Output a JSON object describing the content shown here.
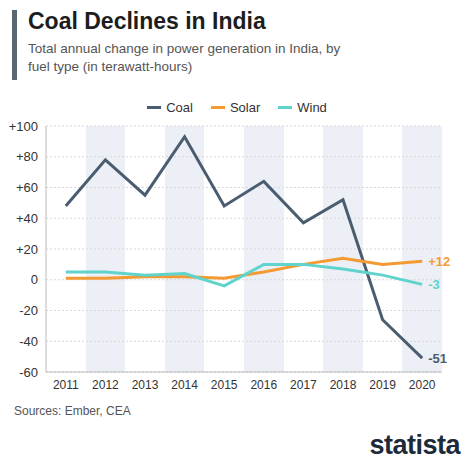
{
  "chart_data": {
    "type": "line",
    "title": "Coal Declines in India",
    "subtitle": "Total annual change in power generation in India, by fuel type (in terawatt-hours)",
    "categories": [
      "2011",
      "2012",
      "2013",
      "2014",
      "2015",
      "2016",
      "2017",
      "2018",
      "2019",
      "2020"
    ],
    "series": [
      {
        "name": "Coal",
        "color": "#4a5d70",
        "values": [
          48,
          78,
          55,
          93,
          48,
          64,
          37,
          52,
          -26,
          -51
        ],
        "value_labels": [
          null,
          null,
          null,
          null,
          null,
          null,
          null,
          null,
          null,
          "-51"
        ]
      },
      {
        "name": "Solar",
        "color": "#f39a32",
        "values": [
          1,
          1,
          2,
          2,
          1,
          5,
          10,
          14,
          10,
          12
        ],
        "value_labels": [
          null,
          null,
          null,
          null,
          null,
          null,
          null,
          null,
          null,
          "+12"
        ]
      },
      {
        "name": "Wind",
        "color": "#5fd3cc",
        "values": [
          5,
          5,
          3,
          4,
          -4,
          10,
          10,
          7,
          3,
          -3
        ],
        "value_labels": [
          null,
          null,
          null,
          null,
          null,
          null,
          null,
          null,
          null,
          "-3"
        ]
      }
    ],
    "ylim": [
      -60,
      100
    ],
    "yticks": [
      {
        "value": 100,
        "label": "+100"
      },
      {
        "value": 80,
        "label": "+80"
      },
      {
        "value": 60,
        "label": "+60"
      },
      {
        "value": 40,
        "label": "+40"
      },
      {
        "value": 20,
        "label": "+20"
      },
      0,
      -20,
      -40,
      -60
    ],
    "grid": true,
    "legend": "top",
    "source": "Sources: Ember, CEA",
    "logo": "statista"
  }
}
